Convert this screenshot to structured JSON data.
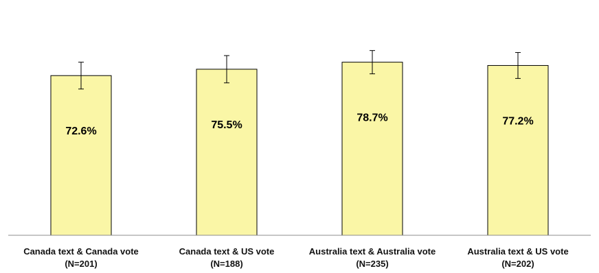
{
  "chart_data": {
    "type": "bar",
    "categories": [
      [
        "Canada text & Canada vote",
        "(N=201)"
      ],
      [
        "Canada text & US vote",
        "(N=188)"
      ],
      [
        "Australia text & Australia vote",
        "(N=235)"
      ],
      [
        "Australia text & US vote",
        "(N=202)"
      ]
    ],
    "values": [
      72.6,
      75.5,
      78.7,
      77.2
    ],
    "value_labels": [
      "72.6%",
      "75.5%",
      "78.7%",
      "77.2%"
    ],
    "error_low": [
      66.5,
      69.3,
      73.4,
      71.3
    ],
    "error_high": [
      78.7,
      81.7,
      84.0,
      83.1
    ],
    "ylim": [
      0,
      90
    ],
    "grid": false,
    "legend": "none",
    "colors": {
      "bar_fill": "#FAF6A6",
      "bar_stroke": "#000000",
      "axis": "#8C8C8C",
      "error_bar": "#000000"
    }
  }
}
